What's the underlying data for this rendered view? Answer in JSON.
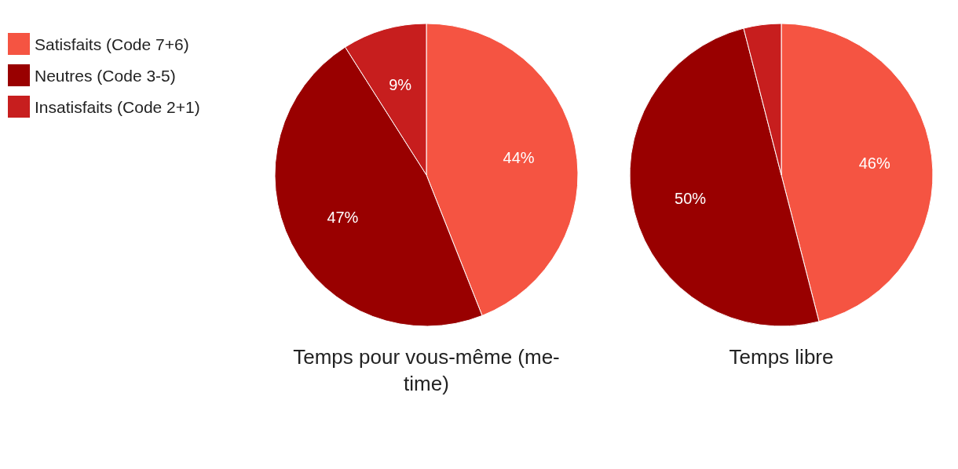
{
  "chart_data": [
    {
      "type": "pie",
      "title": "Temps pour vous-même (me-time)",
      "categories": [
        "Satisfaits (Code 7+6)",
        "Neutres (Code 3-5)",
        "Insatisfaits (Code 2+1)"
      ],
      "values": [
        44,
        47,
        9
      ],
      "colors": [
        "#f55442",
        "#990000",
        "#c71e1e"
      ],
      "value_labels": [
        "44%",
        "47%",
        "9%"
      ],
      "legend": "top left"
    },
    {
      "type": "pie",
      "title": "Temps libre",
      "categories": [
        null,
        null,
        null
      ],
      "values": [
        46,
        50,
        4
      ],
      "colors": [
        "#f55442",
        "#990000",
        "#c71e1e"
      ],
      "value_labels": [
        "46%",
        "50%",
        null
      ]
    }
  ]
}
